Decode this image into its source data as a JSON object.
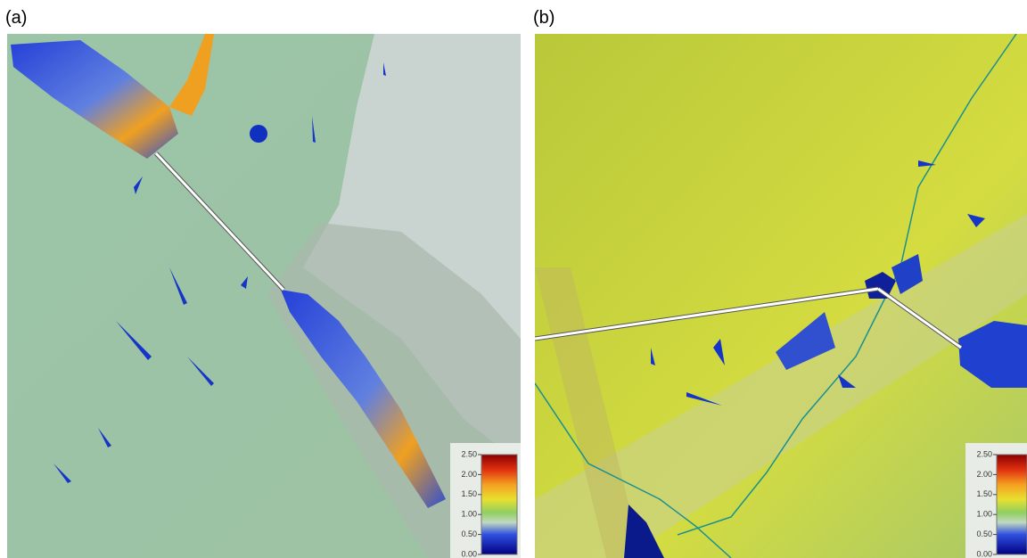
{
  "panels": [
    {
      "label": "(a)",
      "legend": {
        "range": [
          0,
          2.5
        ],
        "ticks": [
          {
            "value": 0,
            "label": "0.00"
          },
          {
            "value": 0.5,
            "label": "0.50"
          },
          {
            "value": 1,
            "label": "1.00"
          },
          {
            "value": 1.5,
            "label": "1.50"
          },
          {
            "value": 2,
            "label": "2.00"
          },
          {
            "value": 2.5,
            "label": "2.50"
          }
        ]
      }
    },
    {
      "label": "(b)",
      "legend": {
        "range": [
          0,
          2.5
        ],
        "ticks": [
          {
            "value": 0,
            "label": "0.00"
          },
          {
            "value": 0.5,
            "label": "0.50"
          },
          {
            "value": 1,
            "label": "1.00"
          },
          {
            "value": 1.5,
            "label": "1.50"
          },
          {
            "value": 2,
            "label": "2.00"
          },
          {
            "value": 2.5,
            "label": "2.50"
          }
        ]
      }
    }
  ]
}
